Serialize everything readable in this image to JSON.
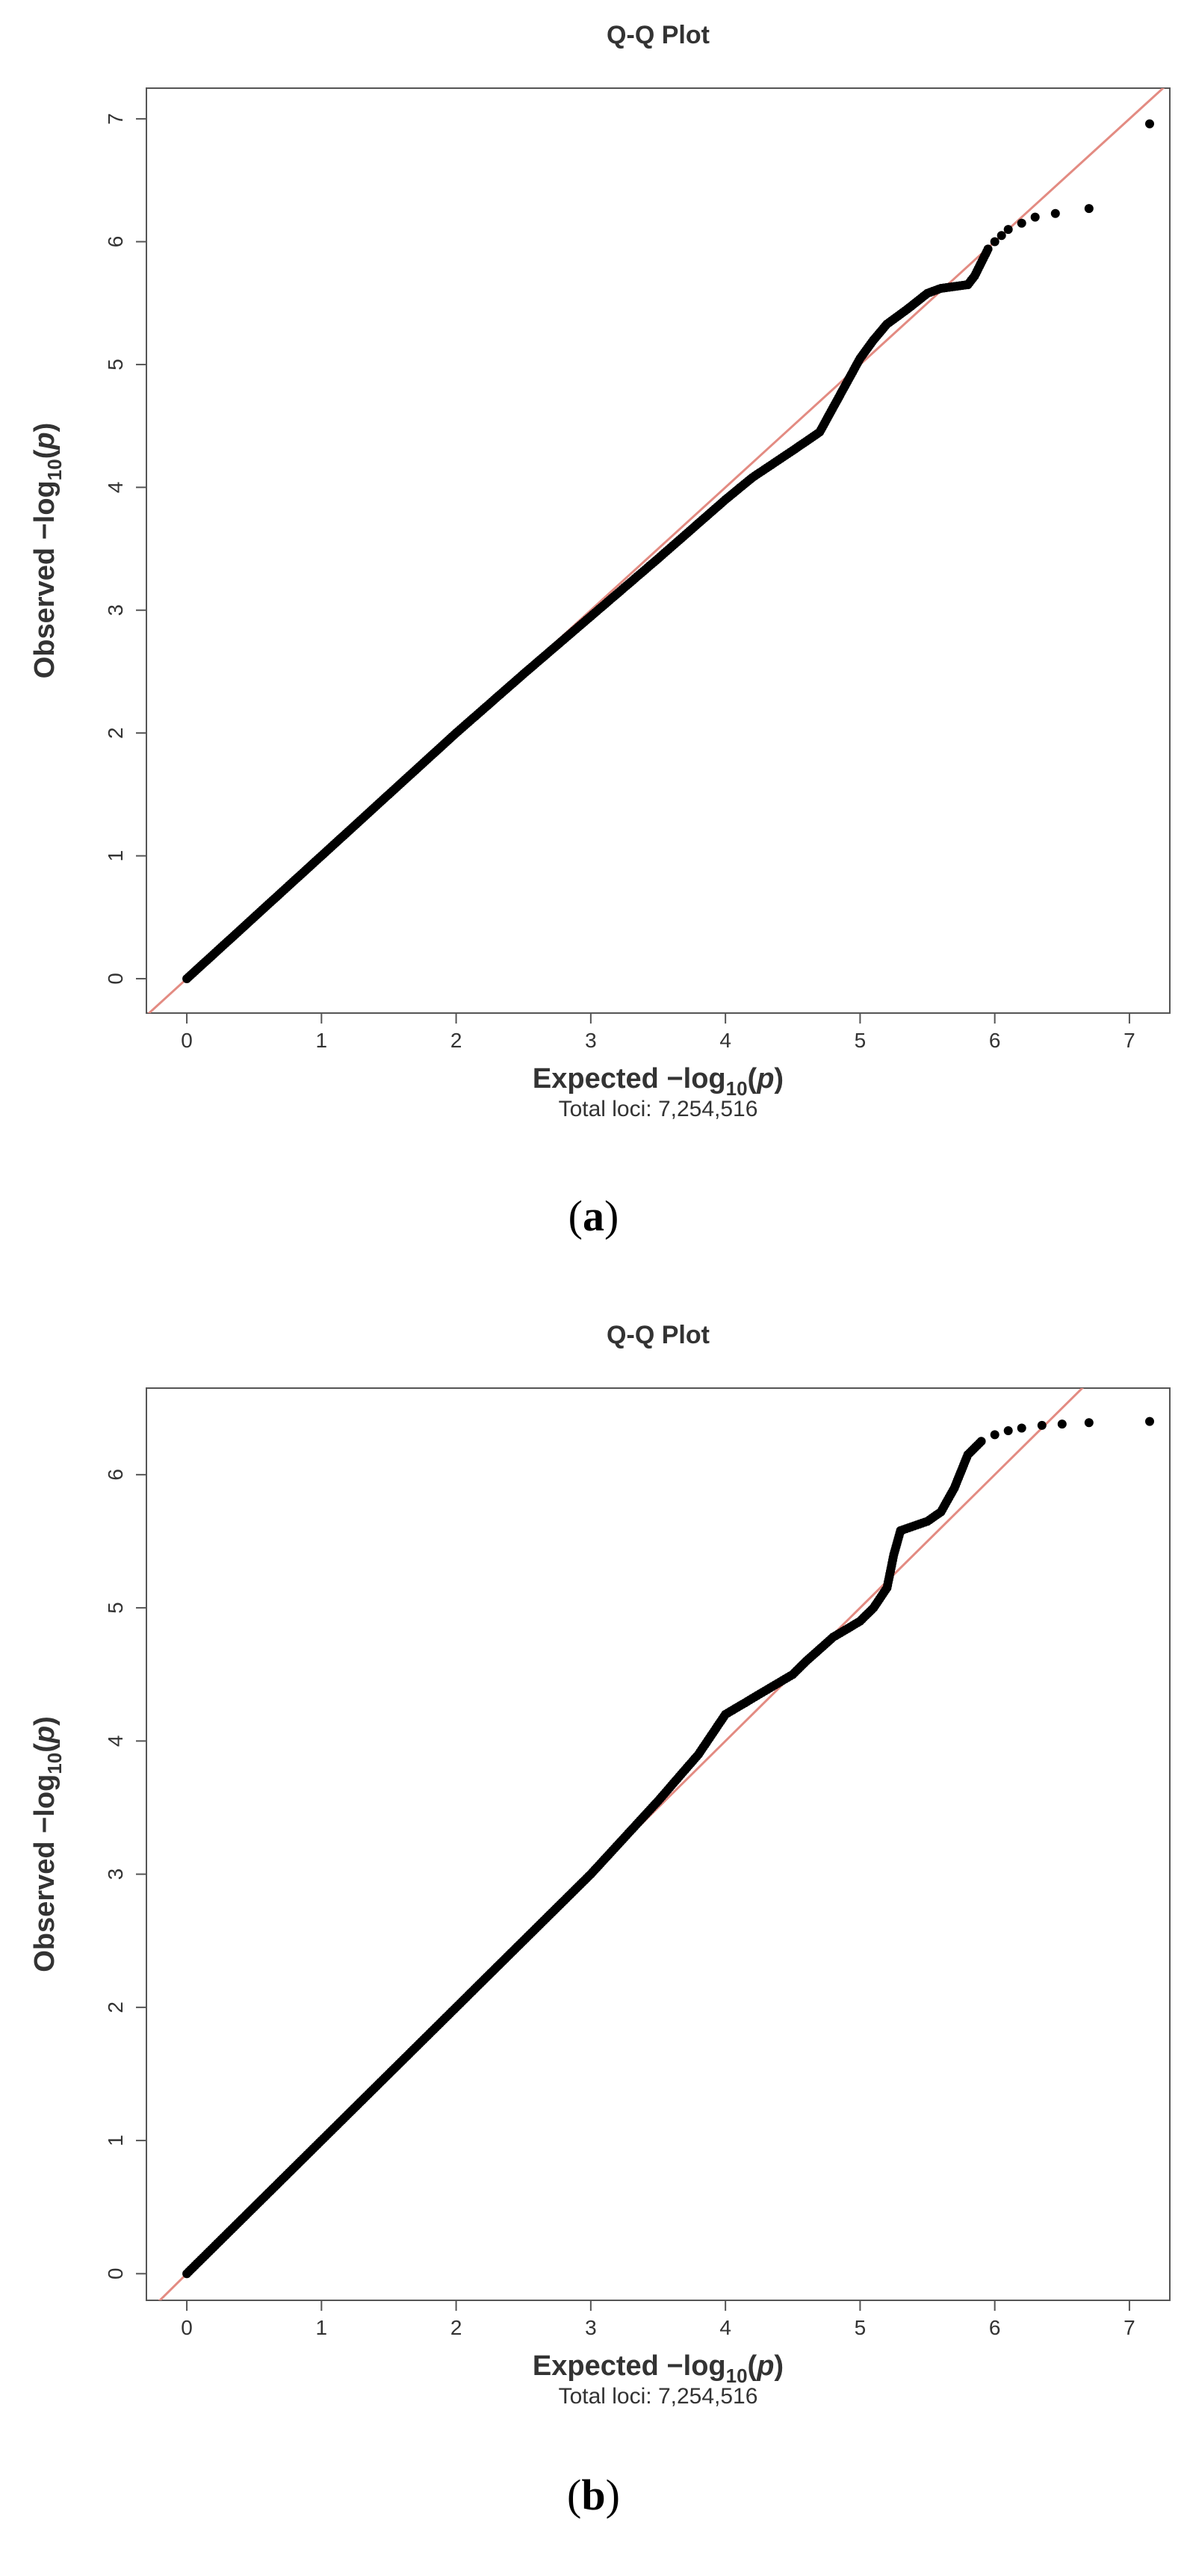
{
  "colors": {
    "point": "#000000",
    "reference_line": "#e38b82",
    "frame": "#555555",
    "text": "#333333"
  },
  "captions": [
    "a",
    "b"
  ],
  "chart_data": [
    {
      "type": "scatter",
      "title": "Q-Q Plot",
      "xlabel": "Expected  −log",
      "ylabel": "Observed  −log",
      "label_sub": "10",
      "label_var": "p",
      "footnote": "Total loci: 7,254,516",
      "xlim": [
        -0.3,
        7.3
      ],
      "ylim": [
        -0.28,
        7.25
      ],
      "xticks": [
        "0",
        "1",
        "2",
        "3",
        "4",
        "5",
        "6",
        "7"
      ],
      "yticks": [
        "0",
        "1",
        "2",
        "3",
        "4",
        "5",
        "6",
        "7"
      ],
      "reference_line": "y = x",
      "series": [
        {
          "name": "observed vs expected",
          "curve": [
            [
              0,
              0
            ],
            [
              0.5,
              0.5
            ],
            [
              1,
              1
            ],
            [
              1.5,
              1.5
            ],
            [
              2,
              2
            ],
            [
              2.5,
              2.48
            ],
            [
              3,
              2.95
            ],
            [
              3.5,
              3.42
            ],
            [
              4,
              3.9
            ],
            [
              4.2,
              4.08
            ],
            [
              4.5,
              4.3
            ],
            [
              4.7,
              4.45
            ],
            [
              4.85,
              4.75
            ],
            [
              5,
              5.05
            ],
            [
              5.1,
              5.2
            ],
            [
              5.2,
              5.33
            ],
            [
              5.35,
              5.45
            ],
            [
              5.5,
              5.58
            ],
            [
              5.6,
              5.62
            ],
            [
              5.8,
              5.65
            ],
            [
              5.85,
              5.72
            ],
            [
              5.95,
              5.94
            ]
          ],
          "tail": [
            [
              6.0,
              6.0
            ],
            [
              6.05,
              6.05
            ],
            [
              6.1,
              6.1
            ],
            [
              6.2,
              6.15
            ],
            [
              6.3,
              6.2
            ],
            [
              6.45,
              6.23
            ],
            [
              6.7,
              6.27
            ],
            [
              7.15,
              6.96
            ]
          ]
        }
      ]
    },
    {
      "type": "scatter",
      "title": "Q-Q Plot",
      "xlabel": "Expected  −log",
      "ylabel": "Observed  −log",
      "label_sub": "10",
      "label_var": "p",
      "footnote": "Total loci: 7,254,516",
      "xlim": [
        -0.3,
        7.3
      ],
      "ylim": [
        -0.2,
        6.65
      ],
      "xticks": [
        "0",
        "1",
        "2",
        "3",
        "4",
        "5",
        "6",
        "7"
      ],
      "yticks": [
        "0",
        "1",
        "2",
        "3",
        "4",
        "5",
        "6"
      ],
      "reference_line": "y = x",
      "series": [
        {
          "name": "observed vs expected",
          "curve": [
            [
              0,
              0
            ],
            [
              0.5,
              0.5
            ],
            [
              1,
              1
            ],
            [
              1.5,
              1.5
            ],
            [
              2,
              2
            ],
            [
              2.5,
              2.5
            ],
            [
              3,
              3
            ],
            [
              3.5,
              3.55
            ],
            [
              3.8,
              3.9
            ],
            [
              4.0,
              4.2
            ],
            [
              4.2,
              4.32
            ],
            [
              4.5,
              4.5
            ],
            [
              4.6,
              4.6
            ],
            [
              4.8,
              4.78
            ],
            [
              5.0,
              4.9
            ],
            [
              5.1,
              5.0
            ],
            [
              5.2,
              5.15
            ],
            [
              5.25,
              5.4
            ],
            [
              5.3,
              5.58
            ],
            [
              5.5,
              5.65
            ],
            [
              5.6,
              5.72
            ],
            [
              5.7,
              5.9
            ],
            [
              5.8,
              6.15
            ],
            [
              5.9,
              6.25
            ]
          ],
          "tail": [
            [
              6.0,
              6.3
            ],
            [
              6.1,
              6.33
            ],
            [
              6.2,
              6.35
            ],
            [
              6.35,
              6.37
            ],
            [
              6.5,
              6.38
            ],
            [
              6.7,
              6.39
            ],
            [
              7.15,
              6.4
            ]
          ]
        }
      ]
    }
  ]
}
